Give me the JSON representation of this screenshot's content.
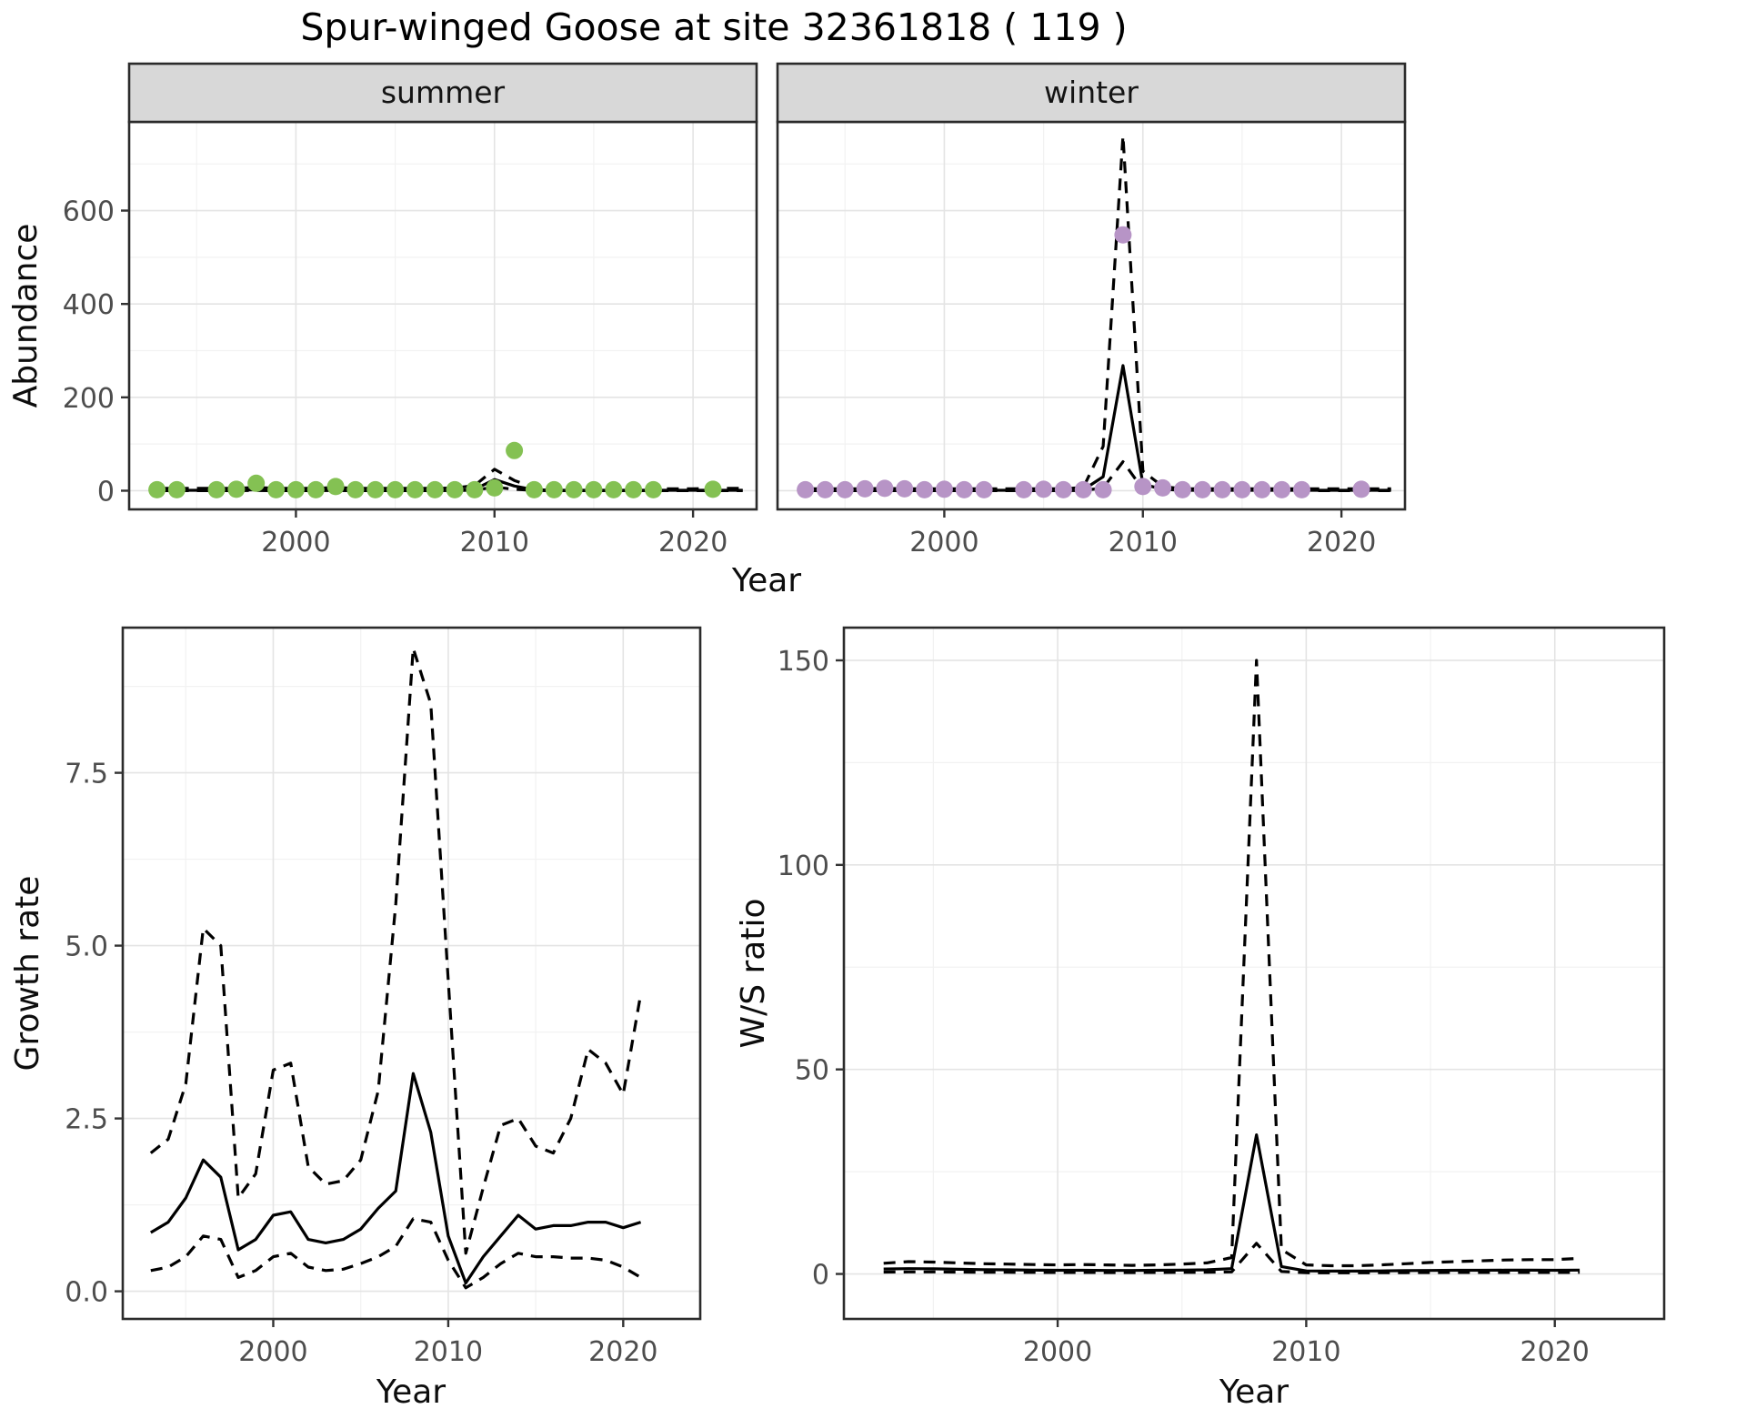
{
  "title": "Spur-winged Goose at site 32361818 ( 119 )",
  "colors": {
    "summer_point": "#84c153",
    "winter_point": "#b794c6",
    "line": "#000000",
    "strip_bg": "#d8d8d8",
    "panel_border": "#2b2b2b",
    "grid_major": "#e4e4e4",
    "grid_minor": "#f2f2f2",
    "tick_mark": "#333333",
    "background": "#ffffff"
  },
  "chart_data": [
    {
      "id": "abundance-summer",
      "type": "line",
      "facet_label": "summer",
      "ylabel": "Abundance",
      "xlabel": "Year",
      "xlim": [
        1991.6,
        2023.2
      ],
      "ylim": [
        -40,
        790
      ],
      "xticks": [
        2000,
        2010,
        2020
      ],
      "xtick_labels": [
        "2000",
        "2010",
        "2020"
      ],
      "xticks_minor": [
        1995,
        2005,
        2015
      ],
      "yticks": [
        0,
        200,
        400,
        600
      ],
      "ytick_labels": [
        "0",
        "200",
        "400",
        "600"
      ],
      "yticks_minor": [
        100,
        300,
        500,
        700
      ],
      "point_color": "#84c153",
      "points": {
        "x": [
          1993,
          1994,
          1996,
          1997,
          1998,
          1999,
          2000,
          2001,
          2002,
          2003,
          2004,
          2005,
          2006,
          2007,
          2008,
          2009,
          2010,
          2011,
          2012,
          2013,
          2014,
          2015,
          2016,
          2017,
          2018,
          2021
        ],
        "y": [
          2,
          2,
          2,
          3,
          16,
          2,
          2,
          2,
          9,
          2,
          2,
          2,
          2,
          2,
          2,
          2,
          6,
          86,
          2,
          2,
          2,
          2,
          2,
          2,
          2,
          3
        ]
      },
      "line_x": [
        1993,
        1994,
        1995,
        1996,
        1997,
        1998,
        1999,
        2000,
        2001,
        2002,
        2003,
        2004,
        2005,
        2006,
        2007,
        2008,
        2009,
        2010,
        2011,
        2012,
        2013,
        2014,
        2015,
        2016,
        2017,
        2018,
        2019,
        2020,
        2021,
        2022.5
      ],
      "lines": [
        {
          "name": "mean",
          "dash": false,
          "y": [
            1,
            1,
            1,
            1,
            1,
            2,
            1,
            1,
            1,
            2,
            1,
            1,
            1,
            1,
            1,
            1,
            3,
            24,
            10,
            2,
            1,
            1,
            1,
            1,
            1,
            1,
            1,
            1,
            1,
            1
          ]
        },
        {
          "name": "upper-ci",
          "dash": true,
          "y": [
            5,
            5,
            5,
            5,
            5,
            7,
            5,
            5,
            5,
            7,
            5,
            5,
            5,
            5,
            5,
            6,
            11,
            46,
            22,
            7,
            5,
            4,
            4,
            4,
            4,
            4,
            4,
            4,
            5,
            5
          ]
        },
        {
          "name": "lower-ci",
          "dash": true,
          "y": [
            0.2,
            0.2,
            0.2,
            0.2,
            0.2,
            0.3,
            0.2,
            0.2,
            0.2,
            0.3,
            0.2,
            0.2,
            0.2,
            0.2,
            0.2,
            0.3,
            1,
            8,
            3,
            0.5,
            0.2,
            0.2,
            0.2,
            0.2,
            0.2,
            0.2,
            0.2,
            0.2,
            0.2,
            0.2
          ]
        }
      ]
    },
    {
      "id": "abundance-winter",
      "type": "line",
      "facet_label": "winter",
      "xlim": [
        1991.6,
        2023.2
      ],
      "ylim": [
        -40,
        790
      ],
      "xticks": [
        2000,
        2010,
        2020
      ],
      "xtick_labels": [
        "2000",
        "2010",
        "2020"
      ],
      "xticks_minor": [
        1995,
        2005,
        2015
      ],
      "yticks": [
        0,
        200,
        400,
        600
      ],
      "ytick_labels": [
        "0",
        "200",
        "400",
        "600"
      ],
      "yticks_minor": [
        100,
        300,
        500,
        700
      ],
      "point_color": "#b794c6",
      "points": {
        "x": [
          1993,
          1994,
          1995,
          1996,
          1997,
          1998,
          1999,
          2000,
          2001,
          2002,
          2004,
          2005,
          2006,
          2007,
          2008,
          2009,
          2010,
          2011,
          2012,
          2013,
          2014,
          2015,
          2016,
          2017,
          2018,
          2021
        ],
        "y": [
          2,
          2,
          2,
          4,
          5,
          4,
          2,
          3,
          2,
          2,
          2,
          3,
          2,
          2,
          2,
          548,
          9,
          6,
          2,
          2,
          2,
          2,
          2,
          2,
          2,
          3
        ]
      },
      "line_x": [
        1993,
        1994,
        1995,
        1996,
        1997,
        1998,
        1999,
        2000,
        2001,
        2002,
        2003,
        2004,
        2005,
        2006,
        2007,
        2008,
        2009,
        2010,
        2011,
        2012,
        2013,
        2014,
        2015,
        2016,
        2017,
        2018,
        2019,
        2020,
        2021,
        2022.5
      ],
      "lines": [
        {
          "name": "mean",
          "dash": false,
          "y": [
            1,
            1,
            1,
            1,
            1,
            1,
            1,
            1,
            1,
            1,
            1,
            1,
            1,
            1,
            2,
            30,
            268,
            14,
            3,
            1,
            1,
            1,
            1,
            1,
            1,
            1,
            1,
            1,
            1,
            1
          ]
        },
        {
          "name": "upper-ci",
          "dash": true,
          "y": [
            4,
            4,
            4,
            4,
            5,
            4,
            4,
            4,
            4,
            4,
            4,
            4,
            4,
            4,
            7,
            95,
            760,
            42,
            9,
            4,
            4,
            4,
            4,
            4,
            4,
            4,
            4,
            4,
            4,
            4
          ]
        },
        {
          "name": "lower-ci",
          "dash": true,
          "y": [
            0.2,
            0.2,
            0.2,
            0.2,
            0.2,
            0.2,
            0.2,
            0.2,
            0.2,
            0.2,
            0.2,
            0.2,
            0.2,
            0.2,
            0.5,
            6,
            62,
            3,
            0.5,
            0.2,
            0.2,
            0.2,
            0.2,
            0.2,
            0.2,
            0.2,
            0.2,
            0.2,
            0.2,
            0.2
          ]
        }
      ]
    },
    {
      "id": "growth-rate",
      "type": "line",
      "ylabel": "Growth rate",
      "xlabel": "Year",
      "xlim": [
        1991.4,
        2024.4
      ],
      "ylim": [
        -0.4,
        9.6
      ],
      "xticks": [
        2000,
        2010,
        2020
      ],
      "xtick_labels": [
        "2000",
        "2010",
        "2020"
      ],
      "xticks_minor": [
        1995,
        2005,
        2015
      ],
      "yticks": [
        0,
        2.5,
        5,
        7.5
      ],
      "ytick_labels": [
        "0.0",
        "2.5",
        "5.0",
        "7.5"
      ],
      "yticks_minor": [
        1.25,
        3.75,
        6.25,
        8.75
      ],
      "line_x": [
        1993,
        1994,
        1995,
        1996,
        1997,
        1998,
        1999,
        2000,
        2001,
        2002,
        2003,
        2004,
        2005,
        2006,
        2007,
        2008,
        2009,
        2010,
        2011,
        2012,
        2013,
        2014,
        2015,
        2016,
        2017,
        2018,
        2019,
        2020,
        2021
      ],
      "lines": [
        {
          "name": "mean",
          "dash": false,
          "y": [
            0.85,
            1.0,
            1.35,
            1.9,
            1.65,
            0.6,
            0.75,
            1.1,
            1.15,
            0.75,
            0.7,
            0.75,
            0.9,
            1.2,
            1.45,
            3.15,
            2.3,
            0.8,
            0.12,
            0.5,
            0.8,
            1.1,
            0.9,
            0.95,
            0.95,
            1.0,
            1.0,
            0.92,
            1.0
          ]
        },
        {
          "name": "upper-ci",
          "dash": true,
          "y": [
            2.0,
            2.2,
            3.0,
            5.25,
            5.0,
            1.35,
            1.7,
            3.2,
            3.3,
            1.8,
            1.55,
            1.6,
            1.9,
            2.9,
            5.6,
            9.3,
            8.5,
            4.5,
            0.55,
            1.5,
            2.4,
            2.5,
            2.1,
            2.0,
            2.5,
            3.5,
            3.3,
            2.85,
            4.3
          ]
        },
        {
          "name": "lower-ci",
          "dash": true,
          "y": [
            0.3,
            0.35,
            0.5,
            0.8,
            0.75,
            0.2,
            0.3,
            0.5,
            0.55,
            0.35,
            0.3,
            0.32,
            0.4,
            0.5,
            0.65,
            1.05,
            1.0,
            0.45,
            0.05,
            0.2,
            0.4,
            0.55,
            0.5,
            0.5,
            0.48,
            0.48,
            0.45,
            0.35,
            0.2
          ]
        }
      ]
    },
    {
      "id": "ws-ratio",
      "type": "line",
      "ylabel": "W/S ratio",
      "xlabel": "Year",
      "xlim": [
        1991.4,
        2024.4
      ],
      "ylim": [
        -11,
        158
      ],
      "xticks": [
        2000,
        2010,
        2020
      ],
      "xtick_labels": [
        "2000",
        "2010",
        "2020"
      ],
      "xticks_minor": [
        1995,
        2005,
        2015
      ],
      "yticks": [
        0,
        50,
        100,
        150
      ],
      "ytick_labels": [
        "0",
        "50",
        "100",
        "150"
      ],
      "yticks_minor": [
        25,
        75,
        125
      ],
      "line_x": [
        1993,
        1994,
        1995,
        1996,
        1997,
        1998,
        1999,
        2000,
        2001,
        2002,
        2003,
        2004,
        2005,
        2006,
        2007,
        2008,
        2009,
        2010,
        2011,
        2012,
        2013,
        2014,
        2015,
        2016,
        2017,
        2018,
        2019,
        2020,
        2021
      ],
      "lines": [
        {
          "name": "mean",
          "dash": false,
          "y": [
            1.2,
            1.3,
            1.25,
            1.15,
            1.05,
            1.0,
            0.95,
            0.9,
            0.9,
            0.85,
            0.85,
            0.9,
            0.95,
            1.0,
            1.3,
            34,
            1.8,
            0.75,
            0.7,
            0.7,
            0.75,
            0.8,
            0.85,
            0.9,
            0.9,
            0.92,
            0.92,
            0.9,
            0.95
          ]
        },
        {
          "name": "upper-ci",
          "dash": true,
          "y": [
            2.6,
            3.0,
            2.9,
            2.7,
            2.5,
            2.4,
            2.3,
            2.2,
            2.3,
            2.2,
            2.1,
            2.2,
            2.4,
            2.7,
            4.0,
            150,
            6.0,
            2.2,
            2.0,
            2.0,
            2.2,
            2.5,
            2.8,
            3.0,
            3.2,
            3.4,
            3.5,
            3.5,
            3.8
          ]
        },
        {
          "name": "lower-ci",
          "dash": true,
          "y": [
            0.45,
            0.5,
            0.5,
            0.45,
            0.4,
            0.4,
            0.38,
            0.36,
            0.36,
            0.35,
            0.35,
            0.36,
            0.38,
            0.4,
            0.5,
            7.5,
            0.6,
            0.3,
            0.28,
            0.28,
            0.3,
            0.32,
            0.34,
            0.36,
            0.36,
            0.37,
            0.37,
            0.36,
            0.38
          ]
        }
      ]
    }
  ]
}
